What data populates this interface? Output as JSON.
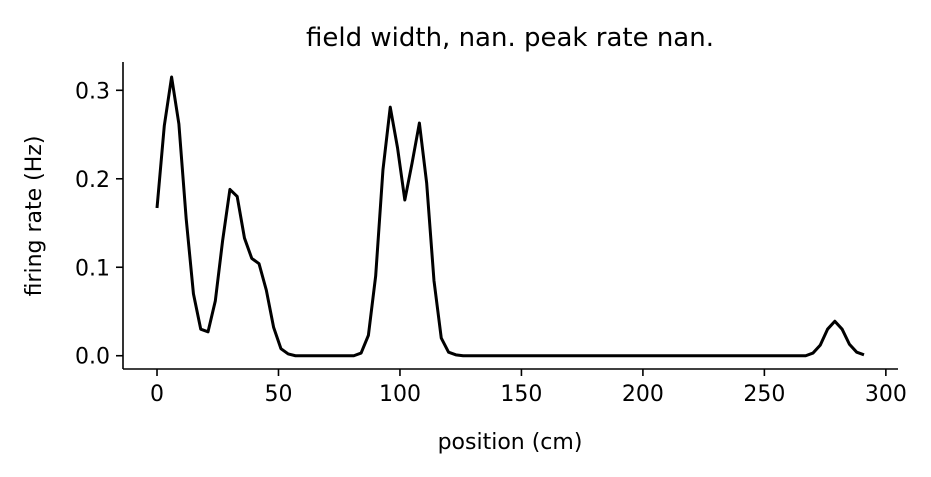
{
  "chart_data": {
    "type": "line",
    "title": "field width, nan. peak rate nan.",
    "xlabel": "position (cm)",
    "ylabel": "firing rate (Hz)",
    "xlim": [
      -14,
      305
    ],
    "ylim": [
      -0.015,
      0.332
    ],
    "x_ticks": [
      0,
      50,
      100,
      150,
      200,
      250,
      300
    ],
    "x_tick_labels": [
      "0",
      "50",
      "100",
      "150",
      "200",
      "250",
      "300"
    ],
    "y_ticks": [
      0.0,
      0.1,
      0.2,
      0.3
    ],
    "y_tick_labels": [
      "0.0",
      "0.1",
      "0.2",
      "0.3"
    ],
    "grid": false,
    "series": [
      {
        "color": "#000000",
        "x": [
          0,
          3,
          6,
          9,
          12,
          15,
          18,
          21,
          24,
          27,
          30,
          33,
          36,
          39,
          42,
          45,
          48,
          51,
          54,
          57,
          60,
          63,
          66,
          69,
          72,
          75,
          78,
          81,
          84,
          87,
          90,
          93,
          96,
          99,
          102,
          105,
          108,
          111,
          114,
          117,
          120,
          123,
          126,
          129,
          132,
          135,
          138,
          141,
          144,
          147,
          150,
          153,
          156,
          159,
          162,
          165,
          168,
          171,
          174,
          177,
          180,
          183,
          186,
          189,
          192,
          195,
          198,
          201,
          204,
          207,
          210,
          213,
          216,
          219,
          222,
          225,
          228,
          231,
          234,
          237,
          240,
          243,
          246,
          249,
          252,
          255,
          258,
          261,
          264,
          267,
          270,
          273,
          276,
          279,
          282,
          285,
          288,
          291
        ],
        "y": [
          0.167,
          0.26,
          0.315,
          0.262,
          0.155,
          0.07,
          0.03,
          0.027,
          0.062,
          0.13,
          0.188,
          0.18,
          0.133,
          0.11,
          0.104,
          0.074,
          0.032,
          0.008,
          0.002,
          0.0,
          0.0,
          0.0,
          0.0,
          0.0,
          0.0,
          0.0,
          0.0,
          0.0,
          0.003,
          0.023,
          0.09,
          0.21,
          0.281,
          0.235,
          0.176,
          0.218,
          0.263,
          0.195,
          0.085,
          0.02,
          0.004,
          0.001,
          0.0,
          0.0,
          0.0,
          0.0,
          0.0,
          0.0,
          0.0,
          0.0,
          0.0,
          0.0,
          0.0,
          0.0,
          0.0,
          0.0,
          0.0,
          0.0,
          0.0,
          0.0,
          0.0,
          0.0,
          0.0,
          0.0,
          0.0,
          0.0,
          0.0,
          0.0,
          0.0,
          0.0,
          0.0,
          0.0,
          0.0,
          0.0,
          0.0,
          0.0,
          0.0,
          0.0,
          0.0,
          0.0,
          0.0,
          0.0,
          0.0,
          0.0,
          0.0,
          0.0,
          0.0,
          0.0,
          0.0,
          0.0,
          0.003,
          0.012,
          0.03,
          0.039,
          0.03,
          0.013,
          0.004,
          0.001
        ]
      }
    ]
  }
}
